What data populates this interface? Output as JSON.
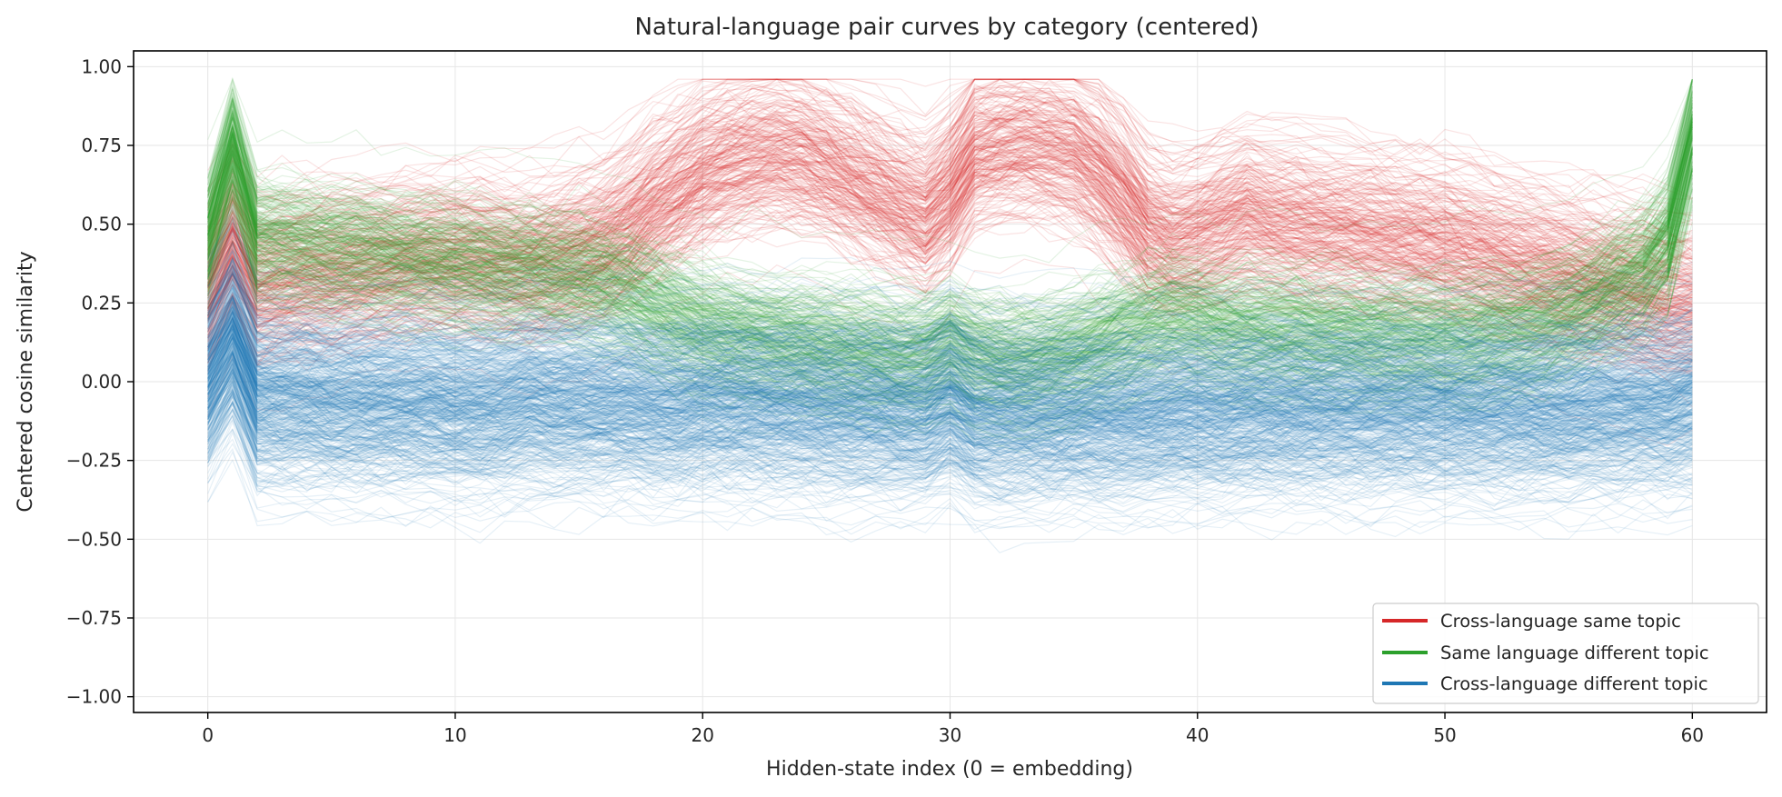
{
  "chart_data": {
    "type": "line",
    "title": "Natural-language pair curves by category (centered)",
    "xlabel": "Hidden-state index (0 = embedding)",
    "ylabel": "Centered cosine similarity",
    "xlim": [
      -3,
      63
    ],
    "ylim": [
      -1.05,
      1.05
    ],
    "x_ticks": [
      0,
      10,
      20,
      30,
      40,
      50,
      60
    ],
    "y_ticks": [
      1.0,
      0.75,
      0.5,
      0.25,
      0.0,
      -0.25,
      -0.5,
      -0.75,
      -1.0
    ],
    "x_tick_labels": [
      "0",
      "10",
      "20",
      "30",
      "40",
      "50",
      "60"
    ],
    "y_tick_labels": [
      "1.00",
      "0.75",
      "0.50",
      "0.25",
      "0.00",
      "−0.25",
      "−0.50",
      "−0.75",
      "−1.00"
    ],
    "grid": true,
    "legend_position": "lower-right",
    "x": [
      0,
      1,
      2,
      3,
      4,
      5,
      6,
      7,
      8,
      9,
      10,
      11,
      12,
      13,
      14,
      15,
      16,
      17,
      18,
      19,
      20,
      21,
      22,
      23,
      24,
      25,
      26,
      27,
      28,
      29,
      30,
      31,
      32,
      33,
      34,
      35,
      36,
      37,
      38,
      39,
      40,
      41,
      42,
      43,
      44,
      45,
      46,
      47,
      48,
      49,
      50,
      51,
      52,
      53,
      54,
      55,
      56,
      57,
      58,
      59,
      60
    ],
    "series": [
      {
        "name": "Cross-language same topic",
        "color": "#d62728",
        "mean_values": [
          0.28,
          0.45,
          0.3,
          0.32,
          0.33,
          0.34,
          0.35,
          0.36,
          0.37,
          0.38,
          0.38,
          0.38,
          0.37,
          0.36,
          0.38,
          0.4,
          0.43,
          0.48,
          0.55,
          0.6,
          0.66,
          0.69,
          0.71,
          0.72,
          0.71,
          0.68,
          0.64,
          0.6,
          0.56,
          0.52,
          0.6,
          0.72,
          0.74,
          0.75,
          0.74,
          0.72,
          0.66,
          0.58,
          0.48,
          0.44,
          0.46,
          0.49,
          0.52,
          0.5,
          0.49,
          0.48,
          0.47,
          0.46,
          0.45,
          0.44,
          0.43,
          0.41,
          0.39,
          0.37,
          0.35,
          0.33,
          0.31,
          0.29,
          0.27,
          0.25,
          0.25
        ],
        "spread": 0.12
      },
      {
        "name": "Same language different topic",
        "color": "#2ca02c",
        "mean_values": [
          0.45,
          0.75,
          0.45,
          0.44,
          0.43,
          0.42,
          0.41,
          0.4,
          0.39,
          0.38,
          0.37,
          0.36,
          0.35,
          0.36,
          0.34,
          0.33,
          0.31,
          0.28,
          0.24,
          0.2,
          0.17,
          0.15,
          0.14,
          0.13,
          0.12,
          0.11,
          0.1,
          0.09,
          0.08,
          0.08,
          0.12,
          0.08,
          0.06,
          0.06,
          0.07,
          0.09,
          0.12,
          0.15,
          0.18,
          0.2,
          0.19,
          0.17,
          0.16,
          0.16,
          0.16,
          0.15,
          0.15,
          0.14,
          0.14,
          0.14,
          0.14,
          0.14,
          0.15,
          0.16,
          0.18,
          0.21,
          0.25,
          0.3,
          0.35,
          0.45,
          0.78
        ],
        "spread": 0.1
      },
      {
        "name": "Cross-language different topic",
        "color": "#1f77b4",
        "mean_values": [
          0.0,
          0.15,
          -0.05,
          -0.05,
          -0.05,
          -0.06,
          -0.06,
          -0.06,
          -0.06,
          -0.06,
          -0.07,
          -0.07,
          -0.07,
          -0.05,
          -0.06,
          -0.06,
          -0.06,
          -0.06,
          -0.07,
          -0.07,
          -0.06,
          -0.06,
          -0.06,
          -0.07,
          -0.07,
          -0.08,
          -0.08,
          -0.08,
          -0.09,
          -0.09,
          -0.05,
          -0.1,
          -0.1,
          -0.1,
          -0.1,
          -0.1,
          -0.1,
          -0.1,
          -0.1,
          -0.09,
          -0.09,
          -0.09,
          -0.08,
          -0.08,
          -0.08,
          -0.08,
          -0.08,
          -0.08,
          -0.08,
          -0.08,
          -0.08,
          -0.08,
          -0.08,
          -0.08,
          -0.08,
          -0.08,
          -0.07,
          -0.07,
          -0.07,
          -0.07,
          -0.05
        ],
        "spread": 0.14
      }
    ]
  }
}
